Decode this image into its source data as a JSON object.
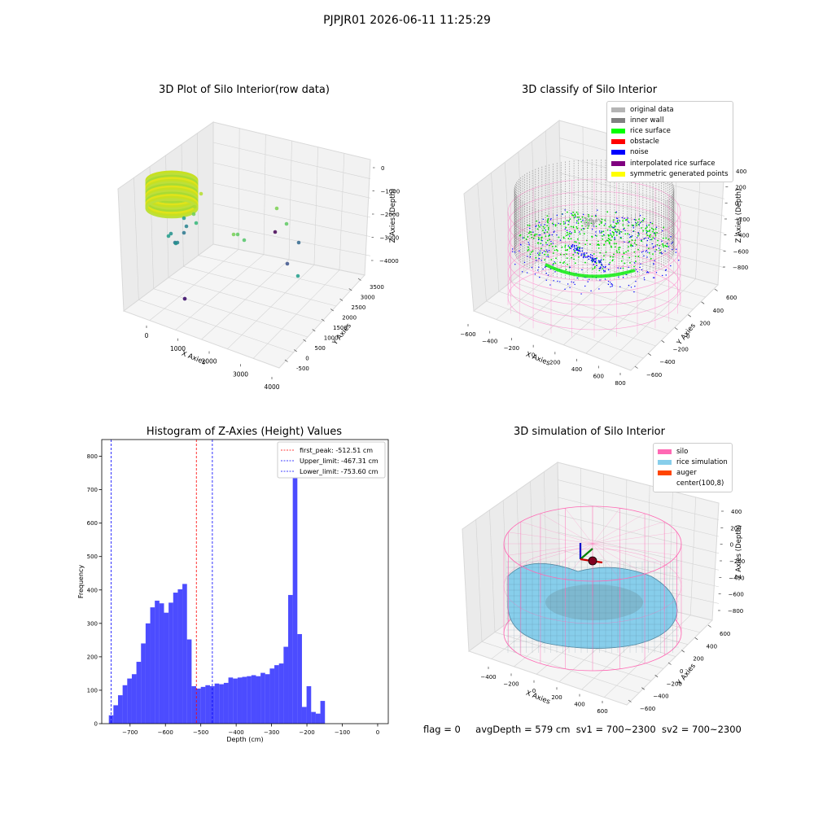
{
  "suptitle": "PJPJR01 2026-06-11 11:25:29",
  "panels": {
    "raw": {
      "title": "3D Plot of Silo Interior(row data)",
      "xlabel": "X Axies",
      "ylabel": "Y Axies",
      "zlabel": "Z Axies (Depth)",
      "xticks": [
        "0",
        "1000",
        "2000",
        "3000",
        "4000"
      ],
      "yticks": [
        "-500",
        "0",
        "500",
        "1000",
        "1500",
        "2000",
        "2500",
        "3000",
        "3500"
      ],
      "zticks": [
        "0",
        "−1000",
        "−2000",
        "−3000",
        "−4000"
      ]
    },
    "classify": {
      "title": "3D classify of Silo Interior",
      "xlabel": "X Axies",
      "ylabel": "Y Axies",
      "zlabel": "Z Axies (Depth)",
      "xticks": [
        "−600",
        "−400",
        "−200",
        "0",
        "200",
        "400",
        "600",
        "800"
      ],
      "yticks": [
        "−600",
        "−400",
        "−200",
        "0",
        "200",
        "400",
        "600"
      ],
      "zticks": [
        "400",
        "200",
        "0",
        "−200",
        "−400",
        "−600",
        "−800"
      ],
      "legend": [
        {
          "label": "original data",
          "color": "#b4b4b4"
        },
        {
          "label": "inner wall",
          "color": "#808080"
        },
        {
          "label": "rice surface",
          "color": "#00ff00"
        },
        {
          "label": "obstacle",
          "color": "#ff0000"
        },
        {
          "label": "noise",
          "color": "#0000ff"
        },
        {
          "label": "interpolated rice surface",
          "color": "#800080"
        },
        {
          "label": "symmetric generated points",
          "color": "#ffff00"
        }
      ]
    },
    "simulation": {
      "title": "3D simulation of Silo Interior",
      "xlabel": "X Axies",
      "ylabel": "Y Axies",
      "zlabel": "Z Axies (Depth)",
      "xticks": [
        "−400",
        "−200",
        "0",
        "200",
        "400",
        "600"
      ],
      "yticks": [
        "−600",
        "−400",
        "−200",
        "0",
        "200",
        "400",
        "600"
      ],
      "zticks": [
        "400",
        "200",
        "0",
        "−200",
        "−400",
        "−600",
        "−800"
      ],
      "legend": [
        {
          "label": "silo",
          "color": "#ff69b4"
        },
        {
          "label": "rice simulation",
          "color": "#87ceeb"
        },
        {
          "label": "auger",
          "color": "#ff4500"
        },
        {
          "label": "center(100,8)",
          "color": ""
        }
      ]
    }
  },
  "chart_data": [
    {
      "type": "bar",
      "title": "Histogram of Z-Axies (Height) Values",
      "xlabel": "Depth (cm)",
      "ylabel": "Frequency",
      "xlim": [
        -780,
        30
      ],
      "ylim": [
        0,
        850
      ],
      "xticks": [
        -700,
        -600,
        -500,
        -400,
        -300,
        -200,
        -100,
        0
      ],
      "yticks": [
        0,
        100,
        200,
        300,
        400,
        500,
        600,
        700,
        800
      ],
      "bin_start": -760,
      "bin_width": 13,
      "values": [
        25,
        55,
        85,
        115,
        135,
        148,
        185,
        240,
        300,
        348,
        368,
        360,
        332,
        362,
        392,
        402,
        418,
        252,
        112,
        105,
        110,
        115,
        112,
        120,
        118,
        122,
        138,
        135,
        138,
        140,
        142,
        145,
        142,
        152,
        148,
        165,
        175,
        180,
        230,
        385,
        820,
        268,
        50,
        112,
        35,
        30,
        68
      ],
      "bar_color": "#0000ff",
      "vlines": [
        {
          "label": "first_peak: -512.51 cm",
          "x": -512.51,
          "color": "#ff0000"
        },
        {
          "label": "Upper_limit: -467.31 cm",
          "x": -467.31,
          "color": "#0000ff"
        },
        {
          "label": "Lower_limit: -753.60 cm",
          "x": -753.6,
          "color": "#0000ff"
        }
      ],
      "legend_position": "upper right"
    }
  ],
  "footer": {
    "flag": "flag = 0",
    "avg": "avgDepth = 579 cm",
    "sv1": "sv1 = 700~2300",
    "sv2": "sv2 = 700~2300"
  }
}
